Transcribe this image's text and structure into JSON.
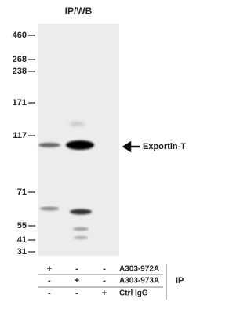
{
  "header": {
    "title": "IP/WB"
  },
  "markers": [
    "460",
    "268",
    "238",
    "171",
    "117",
    "71",
    "55",
    "41",
    "31"
  ],
  "band_label": "Exportin-T",
  "table": {
    "rows": [
      [
        "+",
        "-",
        "-",
        "A303-972A"
      ],
      [
        "-",
        "+",
        "-",
        "A303-973A"
      ],
      [
        "-",
        "-",
        "+",
        "Ctrl IgG"
      ]
    ],
    "group_label": "IP"
  }
}
